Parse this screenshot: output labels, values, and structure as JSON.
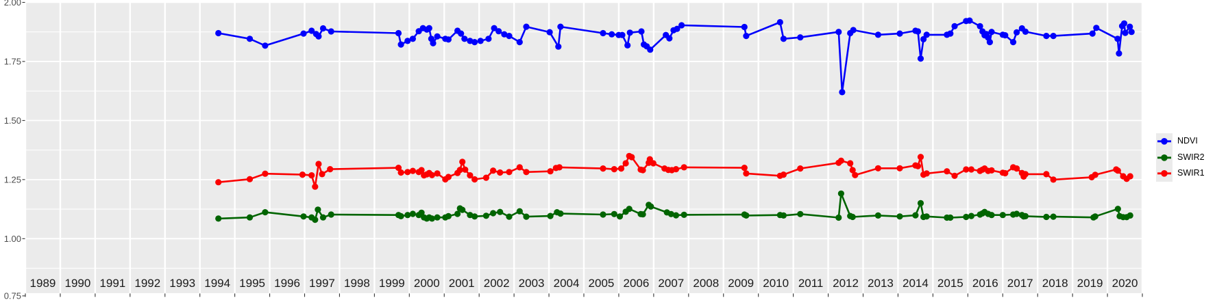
{
  "styles": {
    "background": "#ffffff",
    "panel_bg": "#ebebeb",
    "grid_color": "#ffffff",
    "axis_text_color": "#4d4d4d",
    "year_text_color": "#1a1a1a",
    "tick_color": "#333333"
  },
  "chart_data": {
    "type": "line",
    "title": "",
    "xlabel": "",
    "ylabel": "",
    "grid": true,
    "x_axis": {
      "categories": [
        "1989",
        "1990",
        "1991",
        "1992",
        "1993",
        "1994",
        "1995",
        "1996",
        "1997",
        "1998",
        "1999",
        "2000",
        "2001",
        "2002",
        "2003",
        "2004",
        "2005",
        "2006",
        "2007",
        "2008",
        "2009",
        "2010",
        "2011",
        "2012",
        "2013",
        "2014",
        "2015",
        "2016",
        "2017",
        "2018",
        "2019",
        "2020"
      ]
    },
    "y_axis": {
      "range": [
        0.75,
        2.0
      ],
      "tick_values": [
        0.75,
        1.0,
        1.25,
        1.5,
        1.75,
        2.0
      ],
      "tick_labels": [
        "0.75",
        "1.00",
        "1.25",
        "1.50",
        "1.75",
        "2.00"
      ],
      "minor_step": 0.125
    },
    "legend": {
      "position": "right",
      "entries": [
        {
          "label": "NDVI",
          "color": "#0000fb"
        },
        {
          "label": "SWIR2",
          "color": "#006400"
        },
        {
          "label": "SWIR1",
          "color": "#fb0000"
        }
      ]
    },
    "series": [
      {
        "name": "NDVI",
        "color": "#0000fb",
        "points": [
          [
            1994.53,
            1.87
          ],
          [
            1995.43,
            1.846
          ],
          [
            1995.87,
            1.817
          ],
          [
            1996.97,
            1.868
          ],
          [
            1997.2,
            1.88
          ],
          [
            1997.33,
            1.866
          ],
          [
            1997.4,
            1.856
          ],
          [
            1997.53,
            1.89
          ],
          [
            1997.76,
            1.877
          ],
          [
            1999.69,
            1.87
          ],
          [
            1999.76,
            1.822
          ],
          [
            1999.95,
            1.837
          ],
          [
            2000.1,
            1.846
          ],
          [
            2000.27,
            1.878
          ],
          [
            2000.39,
            1.891
          ],
          [
            2000.5,
            1.885
          ],
          [
            2000.57,
            1.891
          ],
          [
            2000.63,
            1.846
          ],
          [
            2000.68,
            1.827
          ],
          [
            2000.8,
            1.856
          ],
          [
            2001.03,
            1.846
          ],
          [
            2001.12,
            1.843
          ],
          [
            2001.38,
            1.88
          ],
          [
            2001.48,
            1.868
          ],
          [
            2001.58,
            1.846
          ],
          [
            2001.74,
            1.837
          ],
          [
            2001.87,
            1.832
          ],
          [
            2002.04,
            1.837
          ],
          [
            2002.27,
            1.846
          ],
          [
            2002.43,
            1.891
          ],
          [
            2002.56,
            1.878
          ],
          [
            2002.72,
            1.865
          ],
          [
            2002.86,
            1.858
          ],
          [
            2003.16,
            1.832
          ],
          [
            2003.35,
            1.897
          ],
          [
            2004.02,
            1.874
          ],
          [
            2004.27,
            1.813
          ],
          [
            2004.33,
            1.897
          ],
          [
            2005.55,
            1.87
          ],
          [
            2005.8,
            1.865
          ],
          [
            2006.0,
            1.862
          ],
          [
            2006.1,
            1.862
          ],
          [
            2006.25,
            1.818
          ],
          [
            2006.32,
            1.872
          ],
          [
            2006.65,
            1.877
          ],
          [
            2006.72,
            1.822
          ],
          [
            2006.8,
            1.814
          ],
          [
            2006.9,
            1.8
          ],
          [
            2007.35,
            1.862
          ],
          [
            2007.45,
            1.848
          ],
          [
            2007.57,
            1.882
          ],
          [
            2007.67,
            1.888
          ],
          [
            2007.8,
            1.903
          ],
          [
            2009.6,
            1.896
          ],
          [
            2009.65,
            1.858
          ],
          [
            2010.62,
            1.916
          ],
          [
            2010.72,
            1.846
          ],
          [
            2011.2,
            1.852
          ],
          [
            2012.3,
            1.875
          ],
          [
            2012.4,
            1.62
          ],
          [
            2012.63,
            1.87
          ],
          [
            2012.72,
            1.883
          ],
          [
            2013.43,
            1.863
          ],
          [
            2014.05,
            1.868
          ],
          [
            2014.5,
            1.88
          ],
          [
            2014.57,
            1.877
          ],
          [
            2014.65,
            1.762
          ],
          [
            2014.73,
            1.844
          ],
          [
            2014.82,
            1.863
          ],
          [
            2015.4,
            1.863
          ],
          [
            2015.5,
            1.868
          ],
          [
            2015.62,
            1.899
          ],
          [
            2015.95,
            1.921
          ],
          [
            2016.05,
            1.923
          ],
          [
            2016.35,
            1.899
          ],
          [
            2016.42,
            1.877
          ],
          [
            2016.48,
            1.861
          ],
          [
            2016.53,
            1.866
          ],
          [
            2016.58,
            1.851
          ],
          [
            2016.63,
            1.832
          ],
          [
            2016.68,
            1.875
          ],
          [
            2017.0,
            1.863
          ],
          [
            2017.07,
            1.861
          ],
          [
            2017.3,
            1.832
          ],
          [
            2017.4,
            1.873
          ],
          [
            2017.55,
            1.89
          ],
          [
            2017.65,
            1.876
          ],
          [
            2018.25,
            1.858
          ],
          [
            2018.45,
            1.858
          ],
          [
            2019.57,
            1.868
          ],
          [
            2019.68,
            1.892
          ],
          [
            2020.29,
            1.846
          ],
          [
            2020.33,
            1.784
          ],
          [
            2020.42,
            1.9
          ],
          [
            2020.48,
            1.911
          ],
          [
            2020.51,
            1.871
          ],
          [
            2020.64,
            1.897
          ],
          [
            2020.69,
            1.875
          ]
        ]
      },
      {
        "name": "SWIR2",
        "color": "#006400",
        "points": [
          [
            1994.53,
            1.085
          ],
          [
            1995.43,
            1.09
          ],
          [
            1995.87,
            1.112
          ],
          [
            1996.97,
            1.094
          ],
          [
            1997.2,
            1.09
          ],
          [
            1997.3,
            1.08
          ],
          [
            1997.38,
            1.123
          ],
          [
            1997.53,
            1.09
          ],
          [
            1997.76,
            1.102
          ],
          [
            1999.69,
            1.1
          ],
          [
            1999.76,
            1.095
          ],
          [
            1999.95,
            1.1
          ],
          [
            2000.1,
            1.105
          ],
          [
            2000.27,
            1.1
          ],
          [
            2000.35,
            1.11
          ],
          [
            2000.42,
            1.09
          ],
          [
            2000.5,
            1.085
          ],
          [
            2000.57,
            1.09
          ],
          [
            2000.65,
            1.085
          ],
          [
            2000.8,
            1.09
          ],
          [
            2001.03,
            1.09
          ],
          [
            2001.12,
            1.095
          ],
          [
            2001.38,
            1.105
          ],
          [
            2001.45,
            1.128
          ],
          [
            2001.52,
            1.122
          ],
          [
            2001.74,
            1.1
          ],
          [
            2001.87,
            1.094
          ],
          [
            2002.2,
            1.097
          ],
          [
            2002.4,
            1.108
          ],
          [
            2002.6,
            1.113
          ],
          [
            2002.86,
            1.093
          ],
          [
            2003.16,
            1.116
          ],
          [
            2003.35,
            1.093
          ],
          [
            2004.04,
            1.096
          ],
          [
            2004.23,
            1.112
          ],
          [
            2004.33,
            1.106
          ],
          [
            2005.55,
            1.102
          ],
          [
            2005.87,
            1.104
          ],
          [
            2006.03,
            1.094
          ],
          [
            2006.2,
            1.114
          ],
          [
            2006.3,
            1.126
          ],
          [
            2006.63,
            1.104
          ],
          [
            2006.69,
            1.103
          ],
          [
            2006.86,
            1.143
          ],
          [
            2006.92,
            1.136
          ],
          [
            2007.38,
            1.111
          ],
          [
            2007.5,
            1.104
          ],
          [
            2007.64,
            1.099
          ],
          [
            2007.87,
            1.101
          ],
          [
            2009.6,
            1.102
          ],
          [
            2009.65,
            1.098
          ],
          [
            2010.62,
            1.1
          ],
          [
            2010.72,
            1.098
          ],
          [
            2011.2,
            1.104
          ],
          [
            2012.3,
            1.089
          ],
          [
            2012.37,
            1.191
          ],
          [
            2012.63,
            1.096
          ],
          [
            2012.7,
            1.092
          ],
          [
            2013.43,
            1.098
          ],
          [
            2014.05,
            1.094
          ],
          [
            2014.5,
            1.099
          ],
          [
            2014.65,
            1.15
          ],
          [
            2014.73,
            1.092
          ],
          [
            2014.82,
            1.094
          ],
          [
            2015.4,
            1.089
          ],
          [
            2015.5,
            1.089
          ],
          [
            2015.95,
            1.092
          ],
          [
            2016.1,
            1.096
          ],
          [
            2016.35,
            1.102
          ],
          [
            2016.42,
            1.107
          ],
          [
            2016.48,
            1.113
          ],
          [
            2016.58,
            1.105
          ],
          [
            2016.68,
            1.1
          ],
          [
            2017.0,
            1.1
          ],
          [
            2017.3,
            1.102
          ],
          [
            2017.4,
            1.105
          ],
          [
            2017.55,
            1.1
          ],
          [
            2017.6,
            1.094
          ],
          [
            2017.65,
            1.095
          ],
          [
            2018.25,
            1.092
          ],
          [
            2018.45,
            1.093
          ],
          [
            2019.6,
            1.09
          ],
          [
            2019.65,
            1.094
          ],
          [
            2020.3,
            1.126
          ],
          [
            2020.35,
            1.095
          ],
          [
            2020.45,
            1.091
          ],
          [
            2020.55,
            1.091
          ],
          [
            2020.65,
            1.098
          ]
        ]
      },
      {
        "name": "SWIR1",
        "color": "#fb0000",
        "points": [
          [
            1994.53,
            1.239
          ],
          [
            1995.43,
            1.252
          ],
          [
            1995.87,
            1.275
          ],
          [
            1996.94,
            1.271
          ],
          [
            1997.2,
            1.268
          ],
          [
            1997.3,
            1.22
          ],
          [
            1997.4,
            1.316
          ],
          [
            1997.5,
            1.273
          ],
          [
            1997.73,
            1.294
          ],
          [
            1999.69,
            1.3
          ],
          [
            1999.76,
            1.28
          ],
          [
            1999.95,
            1.282
          ],
          [
            2000.1,
            1.287
          ],
          [
            2000.27,
            1.282
          ],
          [
            2000.35,
            1.29
          ],
          [
            2000.42,
            1.268
          ],
          [
            2000.5,
            1.272
          ],
          [
            2000.57,
            1.278
          ],
          [
            2000.65,
            1.269
          ],
          [
            2000.8,
            1.276
          ],
          [
            2001.03,
            1.251
          ],
          [
            2001.12,
            1.261
          ],
          [
            2001.38,
            1.278
          ],
          [
            2001.45,
            1.291
          ],
          [
            2001.52,
            1.325
          ],
          [
            2001.6,
            1.292
          ],
          [
            2001.74,
            1.268
          ],
          [
            2001.87,
            1.251
          ],
          [
            2002.2,
            1.258
          ],
          [
            2002.4,
            1.288
          ],
          [
            2002.6,
            1.28
          ],
          [
            2002.86,
            1.282
          ],
          [
            2003.16,
            1.302
          ],
          [
            2003.35,
            1.282
          ],
          [
            2004.04,
            1.285
          ],
          [
            2004.2,
            1.299
          ],
          [
            2004.3,
            1.302
          ],
          [
            2005.55,
            1.297
          ],
          [
            2005.87,
            1.294
          ],
          [
            2006.07,
            1.297
          ],
          [
            2006.2,
            1.319
          ],
          [
            2006.3,
            1.35
          ],
          [
            2006.37,
            1.345
          ],
          [
            2006.63,
            1.292
          ],
          [
            2006.69,
            1.29
          ],
          [
            2006.86,
            1.321
          ],
          [
            2006.89,
            1.336
          ],
          [
            2006.99,
            1.319
          ],
          [
            2007.31,
            1.297
          ],
          [
            2007.42,
            1.291
          ],
          [
            2007.52,
            1.29
          ],
          [
            2007.64,
            1.294
          ],
          [
            2007.87,
            1.302
          ],
          [
            2009.6,
            1.3
          ],
          [
            2009.65,
            1.276
          ],
          [
            2010.62,
            1.266
          ],
          [
            2010.72,
            1.271
          ],
          [
            2011.2,
            1.297
          ],
          [
            2012.3,
            1.321
          ],
          [
            2012.37,
            1.33
          ],
          [
            2012.63,
            1.319
          ],
          [
            2012.7,
            1.29
          ],
          [
            2012.77,
            1.269
          ],
          [
            2013.43,
            1.298
          ],
          [
            2014.05,
            1.298
          ],
          [
            2014.5,
            1.31
          ],
          [
            2014.57,
            1.307
          ],
          [
            2014.65,
            1.346
          ],
          [
            2014.73,
            1.271
          ],
          [
            2014.82,
            1.276
          ],
          [
            2015.4,
            1.285
          ],
          [
            2015.62,
            1.266
          ],
          [
            2015.95,
            1.293
          ],
          [
            2016.1,
            1.293
          ],
          [
            2016.35,
            1.287
          ],
          [
            2016.42,
            1.292
          ],
          [
            2016.48,
            1.297
          ],
          [
            2016.58,
            1.287
          ],
          [
            2016.68,
            1.289
          ],
          [
            2017.0,
            1.279
          ],
          [
            2017.07,
            1.277
          ],
          [
            2017.3,
            1.302
          ],
          [
            2017.4,
            1.297
          ],
          [
            2017.55,
            1.278
          ],
          [
            2017.6,
            1.263
          ],
          [
            2017.65,
            1.273
          ],
          [
            2018.25,
            1.273
          ],
          [
            2018.45,
            1.25
          ],
          [
            2019.55,
            1.26
          ],
          [
            2019.65,
            1.27
          ],
          [
            2020.25,
            1.293
          ],
          [
            2020.3,
            1.288
          ],
          [
            2020.45,
            1.264
          ],
          [
            2020.55,
            1.253
          ],
          [
            2020.65,
            1.264
          ]
        ]
      }
    ]
  }
}
